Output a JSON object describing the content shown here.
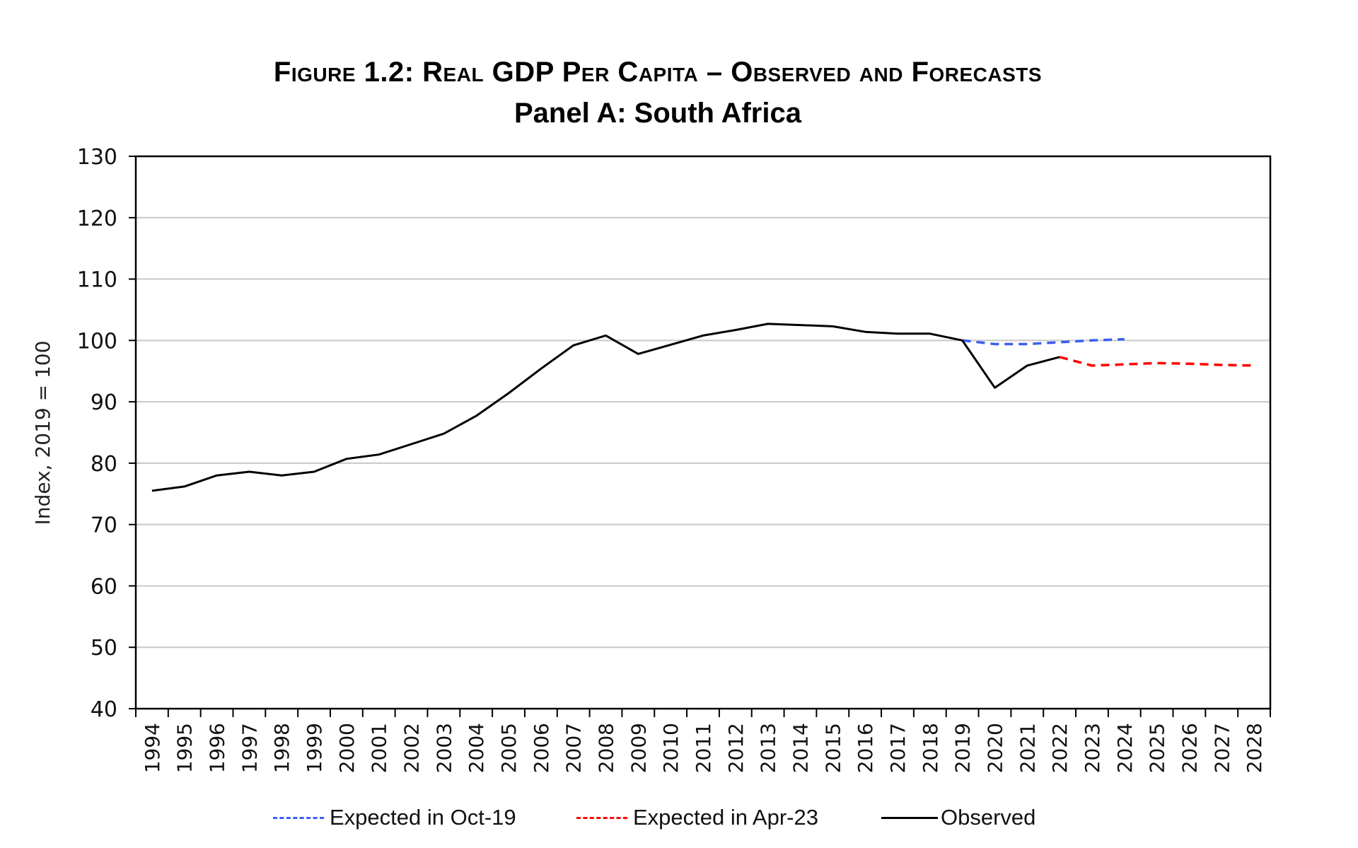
{
  "chart_data": {
    "type": "line",
    "title": "Figure 1.2: Real GDP Per Capita – Observed and Forecasts",
    "subtitle": "Panel A: South Africa",
    "xlabel": "",
    "ylabel": "Index, 2019 = 100",
    "ylim": [
      40,
      130
    ],
    "yticks": [
      "40",
      "50",
      "60",
      "70",
      "80",
      "90",
      "100",
      "110",
      "120",
      "130"
    ],
    "grid": true,
    "legend_position": "bottom",
    "categories": [
      "1994",
      "1995",
      "1996",
      "1997",
      "1998",
      "1999",
      "2000",
      "2001",
      "2002",
      "2003",
      "2004",
      "2005",
      "2006",
      "2007",
      "2008",
      "2009",
      "2010",
      "2011",
      "2012",
      "2013",
      "2014",
      "2015",
      "2016",
      "2017",
      "2018",
      "2019",
      "2020",
      "2021",
      "2022",
      "2023",
      "2024",
      "2025",
      "2026",
      "2027",
      "2028"
    ],
    "series": [
      {
        "name": "Expected in Oct-19",
        "color": "#3a5ff0",
        "style": "dashed",
        "values": [
          null,
          null,
          null,
          null,
          null,
          null,
          null,
          null,
          null,
          null,
          null,
          null,
          null,
          null,
          null,
          null,
          null,
          null,
          null,
          null,
          null,
          null,
          null,
          null,
          null,
          100.0,
          99.4,
          99.4,
          99.7,
          100.0,
          100.2,
          null,
          null,
          null,
          null
        ]
      },
      {
        "name": "Expected in Apr-23",
        "color": "#ff0000",
        "style": "dashed",
        "values": [
          null,
          null,
          null,
          null,
          null,
          null,
          null,
          null,
          null,
          null,
          null,
          null,
          null,
          null,
          null,
          null,
          null,
          null,
          null,
          null,
          null,
          null,
          null,
          null,
          null,
          null,
          null,
          null,
          97.3,
          95.9,
          96.1,
          96.3,
          96.2,
          96.0,
          95.9
        ]
      },
      {
        "name": "Observed",
        "color": "#000000",
        "style": "solid",
        "values": [
          75.5,
          76.2,
          78.0,
          78.6,
          78.0,
          78.6,
          80.7,
          81.4,
          83.1,
          84.8,
          87.7,
          91.4,
          95.4,
          99.2,
          100.8,
          97.8,
          99.3,
          100.8,
          101.7,
          102.7,
          102.5,
          102.3,
          101.4,
          101.1,
          101.1,
          100.0,
          92.3,
          95.9,
          97.3,
          null,
          null,
          null,
          null,
          null,
          null
        ]
      }
    ]
  }
}
